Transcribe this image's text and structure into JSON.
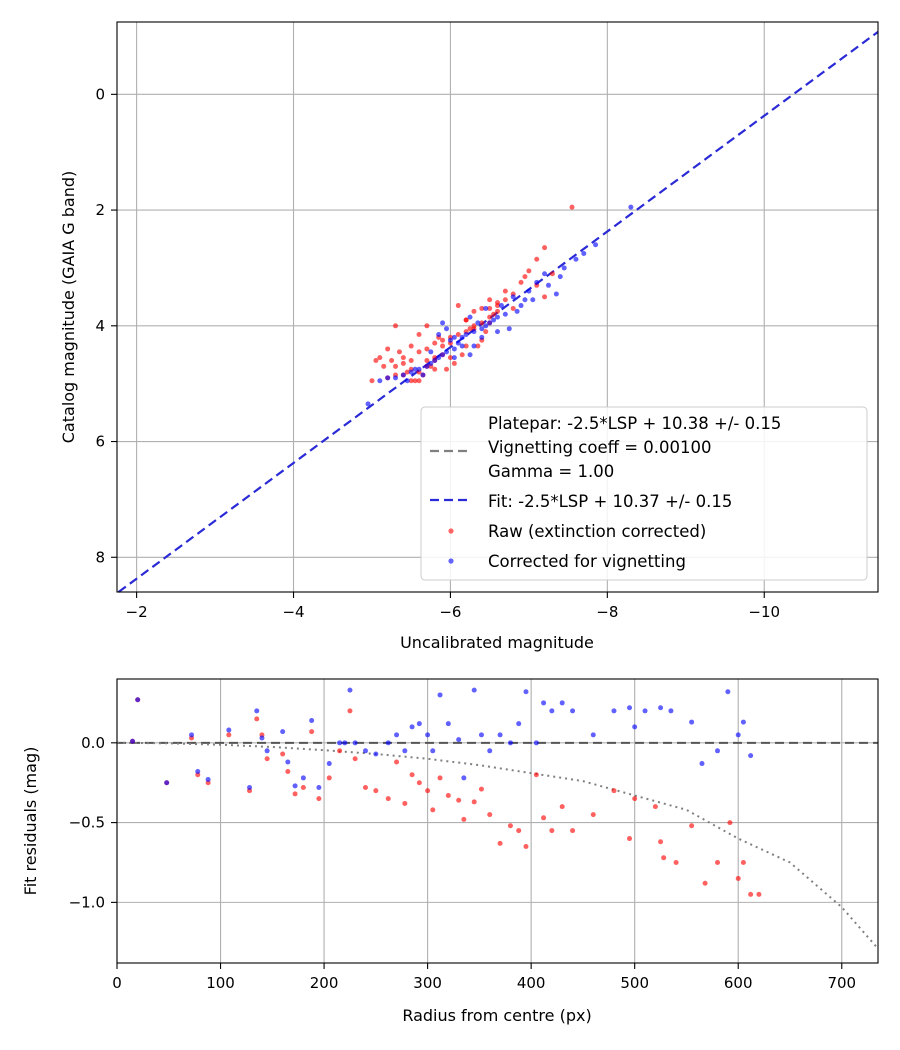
{
  "chart_data": [
    {
      "type": "scatter",
      "title": "",
      "xlabel": "Uncalibrated magnitude",
      "ylabel": "Catalog magnitude (GAIA G band)",
      "xlim": [
        -1.75,
        -11.45
      ],
      "ylim": [
        8.6,
        -1.25
      ],
      "x_inverted": true,
      "y_inverted": true,
      "xticks": [
        -2,
        -4,
        -6,
        -8,
        -10
      ],
      "xtick_labels": [
        "−2",
        "−4",
        "−6",
        "−8",
        "−10"
      ],
      "yticks": [
        0,
        2,
        4,
        6,
        8
      ],
      "ytick_labels": [
        "0",
        "2",
        "4",
        "6",
        "8"
      ],
      "grid": true,
      "legend_position": "bottom-right",
      "legend": [
        "Platepar: -2.5*LSP + 10.38 +/- 0.15",
        "Vignetting coeff = 0.00100",
        "Gamma = 1.00",
        "Fit: -2.5*LSP + 10.37 +/- 0.15",
        "Raw (extinction corrected)",
        "Corrected for vignetting"
      ],
      "colors": {
        "raw": "#ff0000",
        "corrected": "#0000ff",
        "fit_line": "#2a2ad6",
        "platepar_line": "#808080"
      },
      "fit_line": {
        "slope": 1.0,
        "intercept": 10.37
      },
      "platepar_line": {
        "slope": 1.0,
        "intercept": 10.38
      },
      "series": [
        {
          "name": "Raw (extinction corrected)",
          "x": [
            -7.55,
            -7.2,
            -7.1,
            -7.3,
            -7.0,
            -7.1,
            -7.2,
            -6.9,
            -6.8,
            -6.95,
            -6.7,
            -6.6,
            -6.5,
            -6.4,
            -6.5,
            -6.3,
            -6.2,
            -6.4,
            -6.5,
            -6.6,
            -6.3,
            -6.2,
            -6.1,
            -6.0,
            -6.2,
            -6.3,
            -6.0,
            -5.9,
            -5.8,
            -5.7,
            -5.6,
            -5.9,
            -6.0,
            -5.8,
            -5.7,
            -5.5,
            -5.4,
            -5.3,
            -5.5,
            -5.6,
            -5.4,
            -5.3,
            -5.2,
            -5.5,
            -5.6,
            -5.8,
            -5.9,
            -6.1,
            -6.2,
            -5.7,
            -5.6,
            -5.5,
            -5.4,
            -5.7,
            -5.8,
            -5.0,
            -5.1,
            -5.3,
            -5.2,
            -6.4,
            -6.5,
            -6.6,
            -6.7,
            -6.8,
            -6.35,
            -5.95,
            -5.65,
            -5.45,
            -6.05,
            -6.15,
            -5.85,
            -5.75,
            -5.35,
            -5.25,
            -6.25,
            -6.45,
            -5.55,
            -5.15,
            -5.05,
            -6.55
          ],
          "y": [
            1.95,
            2.65,
            2.85,
            3.1,
            3.05,
            3.3,
            3.5,
            3.25,
            3.45,
            3.15,
            3.4,
            3.6,
            3.7,
            3.7,
            3.85,
            3.75,
            3.9,
            3.95,
            3.55,
            3.75,
            4.05,
            4.1,
            4.15,
            4.2,
            4.35,
            4.0,
            4.3,
            4.25,
            4.3,
            4.4,
            4.45,
            4.5,
            4.55,
            4.55,
            4.6,
            4.6,
            4.65,
            4.7,
            4.75,
            4.8,
            4.85,
            4.85,
            4.9,
            4.95,
            4.95,
            4.6,
            4.35,
            3.65,
            3.9,
            4.0,
            4.15,
            4.35,
            4.55,
            4.7,
            4.75,
            4.95,
            4.55,
            4.0,
            4.4,
            4.25,
            3.95,
            3.65,
            3.55,
            3.7,
            4.35,
            4.75,
            4.85,
            4.8,
            4.65,
            4.5,
            4.2,
            4.7,
            4.45,
            4.6,
            4.05,
            4.1,
            4.95,
            4.7,
            4.6,
            3.8
          ]
        },
        {
          "name": "Corrected for vignetting",
          "x": [
            -8.3,
            -7.85,
            -7.7,
            -7.6,
            -7.45,
            -7.2,
            -7.25,
            -7.4,
            -7.0,
            -6.95,
            -6.8,
            -6.85,
            -6.7,
            -6.6,
            -6.55,
            -6.5,
            -6.45,
            -6.4,
            -6.3,
            -6.35,
            -6.2,
            -6.15,
            -6.1,
            -6.0,
            -6.05,
            -5.95,
            -5.9,
            -5.85,
            -5.8,
            -5.75,
            -5.7,
            -5.6,
            -5.5,
            -5.4,
            -5.3,
            -5.2,
            -5.1,
            -4.95,
            -6.25,
            -6.15,
            -6.05,
            -5.95,
            -5.85,
            -5.65,
            -5.55,
            -6.4,
            -6.6,
            -6.75,
            -7.1,
            -7.35,
            -5.45,
            -5.75,
            -6.45,
            -6.65,
            -6.25,
            -5.9,
            -6.05,
            -6.3,
            -6.9,
            -7.05
          ],
          "y": [
            1.95,
            2.6,
            2.75,
            2.85,
            3.0,
            3.1,
            3.3,
            3.15,
            3.4,
            3.55,
            3.5,
            3.75,
            3.8,
            3.85,
            3.9,
            3.95,
            4.0,
            4.05,
            4.1,
            3.95,
            4.15,
            4.2,
            4.3,
            4.25,
            4.4,
            4.45,
            4.5,
            4.55,
            4.6,
            4.65,
            4.7,
            4.75,
            4.8,
            4.85,
            4.9,
            4.9,
            4.95,
            5.35,
            4.5,
            4.35,
            4.2,
            4.05,
            4.15,
            4.85,
            4.75,
            4.2,
            4.1,
            4.05,
            3.25,
            3.45,
            4.95,
            4.45,
            3.7,
            3.65,
            3.85,
            3.95,
            4.55,
            4.35,
            3.65,
            3.55
          ]
        }
      ]
    },
    {
      "type": "scatter",
      "title": "",
      "xlabel": "Radius from centre (px)",
      "ylabel": "Fit residuals (mag)",
      "xlim": [
        0,
        735
      ],
      "ylim": [
        -1.38,
        0.4
      ],
      "xticks": [
        0,
        100,
        200,
        300,
        400,
        500,
        600,
        700
      ],
      "xtick_labels": [
        "0",
        "100",
        "200",
        "300",
        "400",
        "500",
        "600",
        "700"
      ],
      "yticks": [
        0.0,
        -0.5,
        -1.0
      ],
      "ytick_labels": [
        "0.0",
        "−0.5",
        "−1.0"
      ],
      "grid": true,
      "colors": {
        "raw": "#ff0000",
        "corrected": "#0000ff",
        "zero_line": "#555555",
        "vignetting_curve": "#808080"
      },
      "vignetting_curve": {
        "type": "dotted",
        "x": [
          0,
          50,
          100,
          150,
          200,
          250,
          300,
          350,
          400,
          450,
          500,
          550,
          600,
          650,
          700,
          735
        ],
        "y": [
          0.0,
          -0.003,
          -0.012,
          -0.026,
          -0.046,
          -0.07,
          -0.1,
          -0.14,
          -0.19,
          -0.24,
          -0.33,
          -0.42,
          -0.6,
          -0.75,
          -1.03,
          -1.29
        ]
      },
      "series": [
        {
          "name": "Raw (extinction corrected)",
          "x": [
            15,
            20,
            48,
            72,
            78,
            88,
            108,
            128,
            135,
            140,
            145,
            160,
            165,
            172,
            180,
            188,
            195,
            205,
            215,
            225,
            230,
            240,
            250,
            262,
            270,
            278,
            285,
            292,
            300,
            305,
            312,
            320,
            330,
            335,
            345,
            352,
            360,
            370,
            380,
            388,
            395,
            405,
            412,
            420,
            430,
            440,
            460,
            480,
            495,
            500,
            520,
            525,
            528,
            540,
            555,
            568,
            580,
            592,
            600,
            605,
            612,
            620
          ],
          "y": [
            0.01,
            0.27,
            -0.25,
            0.03,
            -0.2,
            -0.25,
            0.05,
            -0.3,
            0.15,
            0.05,
            -0.1,
            -0.07,
            -0.18,
            -0.32,
            -0.28,
            0.07,
            -0.35,
            -0.22,
            -0.05,
            0.2,
            -0.1,
            -0.28,
            -0.3,
            -0.35,
            -0.12,
            -0.38,
            -0.2,
            -0.25,
            -0.3,
            -0.42,
            -0.22,
            -0.33,
            -0.36,
            -0.48,
            -0.37,
            -0.29,
            -0.45,
            -0.63,
            -0.52,
            -0.55,
            -0.65,
            -0.2,
            -0.47,
            -0.55,
            -0.4,
            -0.55,
            -0.45,
            -0.3,
            -0.6,
            -0.35,
            -0.4,
            -0.62,
            -0.72,
            -0.75,
            -0.52,
            -0.88,
            -0.75,
            -0.5,
            -0.85,
            -0.75,
            -0.95,
            -0.95
          ]
        },
        {
          "name": "Corrected for vignetting",
          "x": [
            15,
            20,
            48,
            72,
            78,
            88,
            108,
            128,
            135,
            140,
            145,
            160,
            165,
            172,
            180,
            188,
            195,
            205,
            215,
            220,
            225,
            230,
            240,
            250,
            262,
            270,
            278,
            285,
            292,
            300,
            305,
            312,
            320,
            330,
            335,
            345,
            352,
            360,
            370,
            380,
            388,
            395,
            405,
            412,
            420,
            430,
            440,
            460,
            480,
            495,
            500,
            510,
            525,
            535,
            555,
            565,
            580,
            590,
            600,
            605,
            612
          ],
          "y": [
            0.01,
            0.27,
            -0.25,
            0.05,
            -0.18,
            -0.23,
            0.08,
            -0.28,
            0.2,
            0.03,
            -0.05,
            0.07,
            -0.12,
            -0.27,
            -0.22,
            0.14,
            -0.28,
            -0.13,
            0.0,
            0.0,
            0.33,
            0.0,
            -0.05,
            -0.07,
            0.0,
            0.05,
            -0.05,
            0.1,
            0.12,
            0.05,
            -0.05,
            0.3,
            0.12,
            0.02,
            -0.22,
            0.33,
            0.05,
            -0.05,
            0.05,
            0.0,
            0.12,
            0.32,
            0.0,
            0.25,
            0.2,
            0.25,
            0.2,
            0.05,
            0.2,
            0.22,
            0.1,
            0.2,
            0.22,
            0.2,
            0.13,
            -0.13,
            -0.05,
            0.32,
            0.05,
            0.13,
            -0.08
          ]
        }
      ]
    }
  ]
}
